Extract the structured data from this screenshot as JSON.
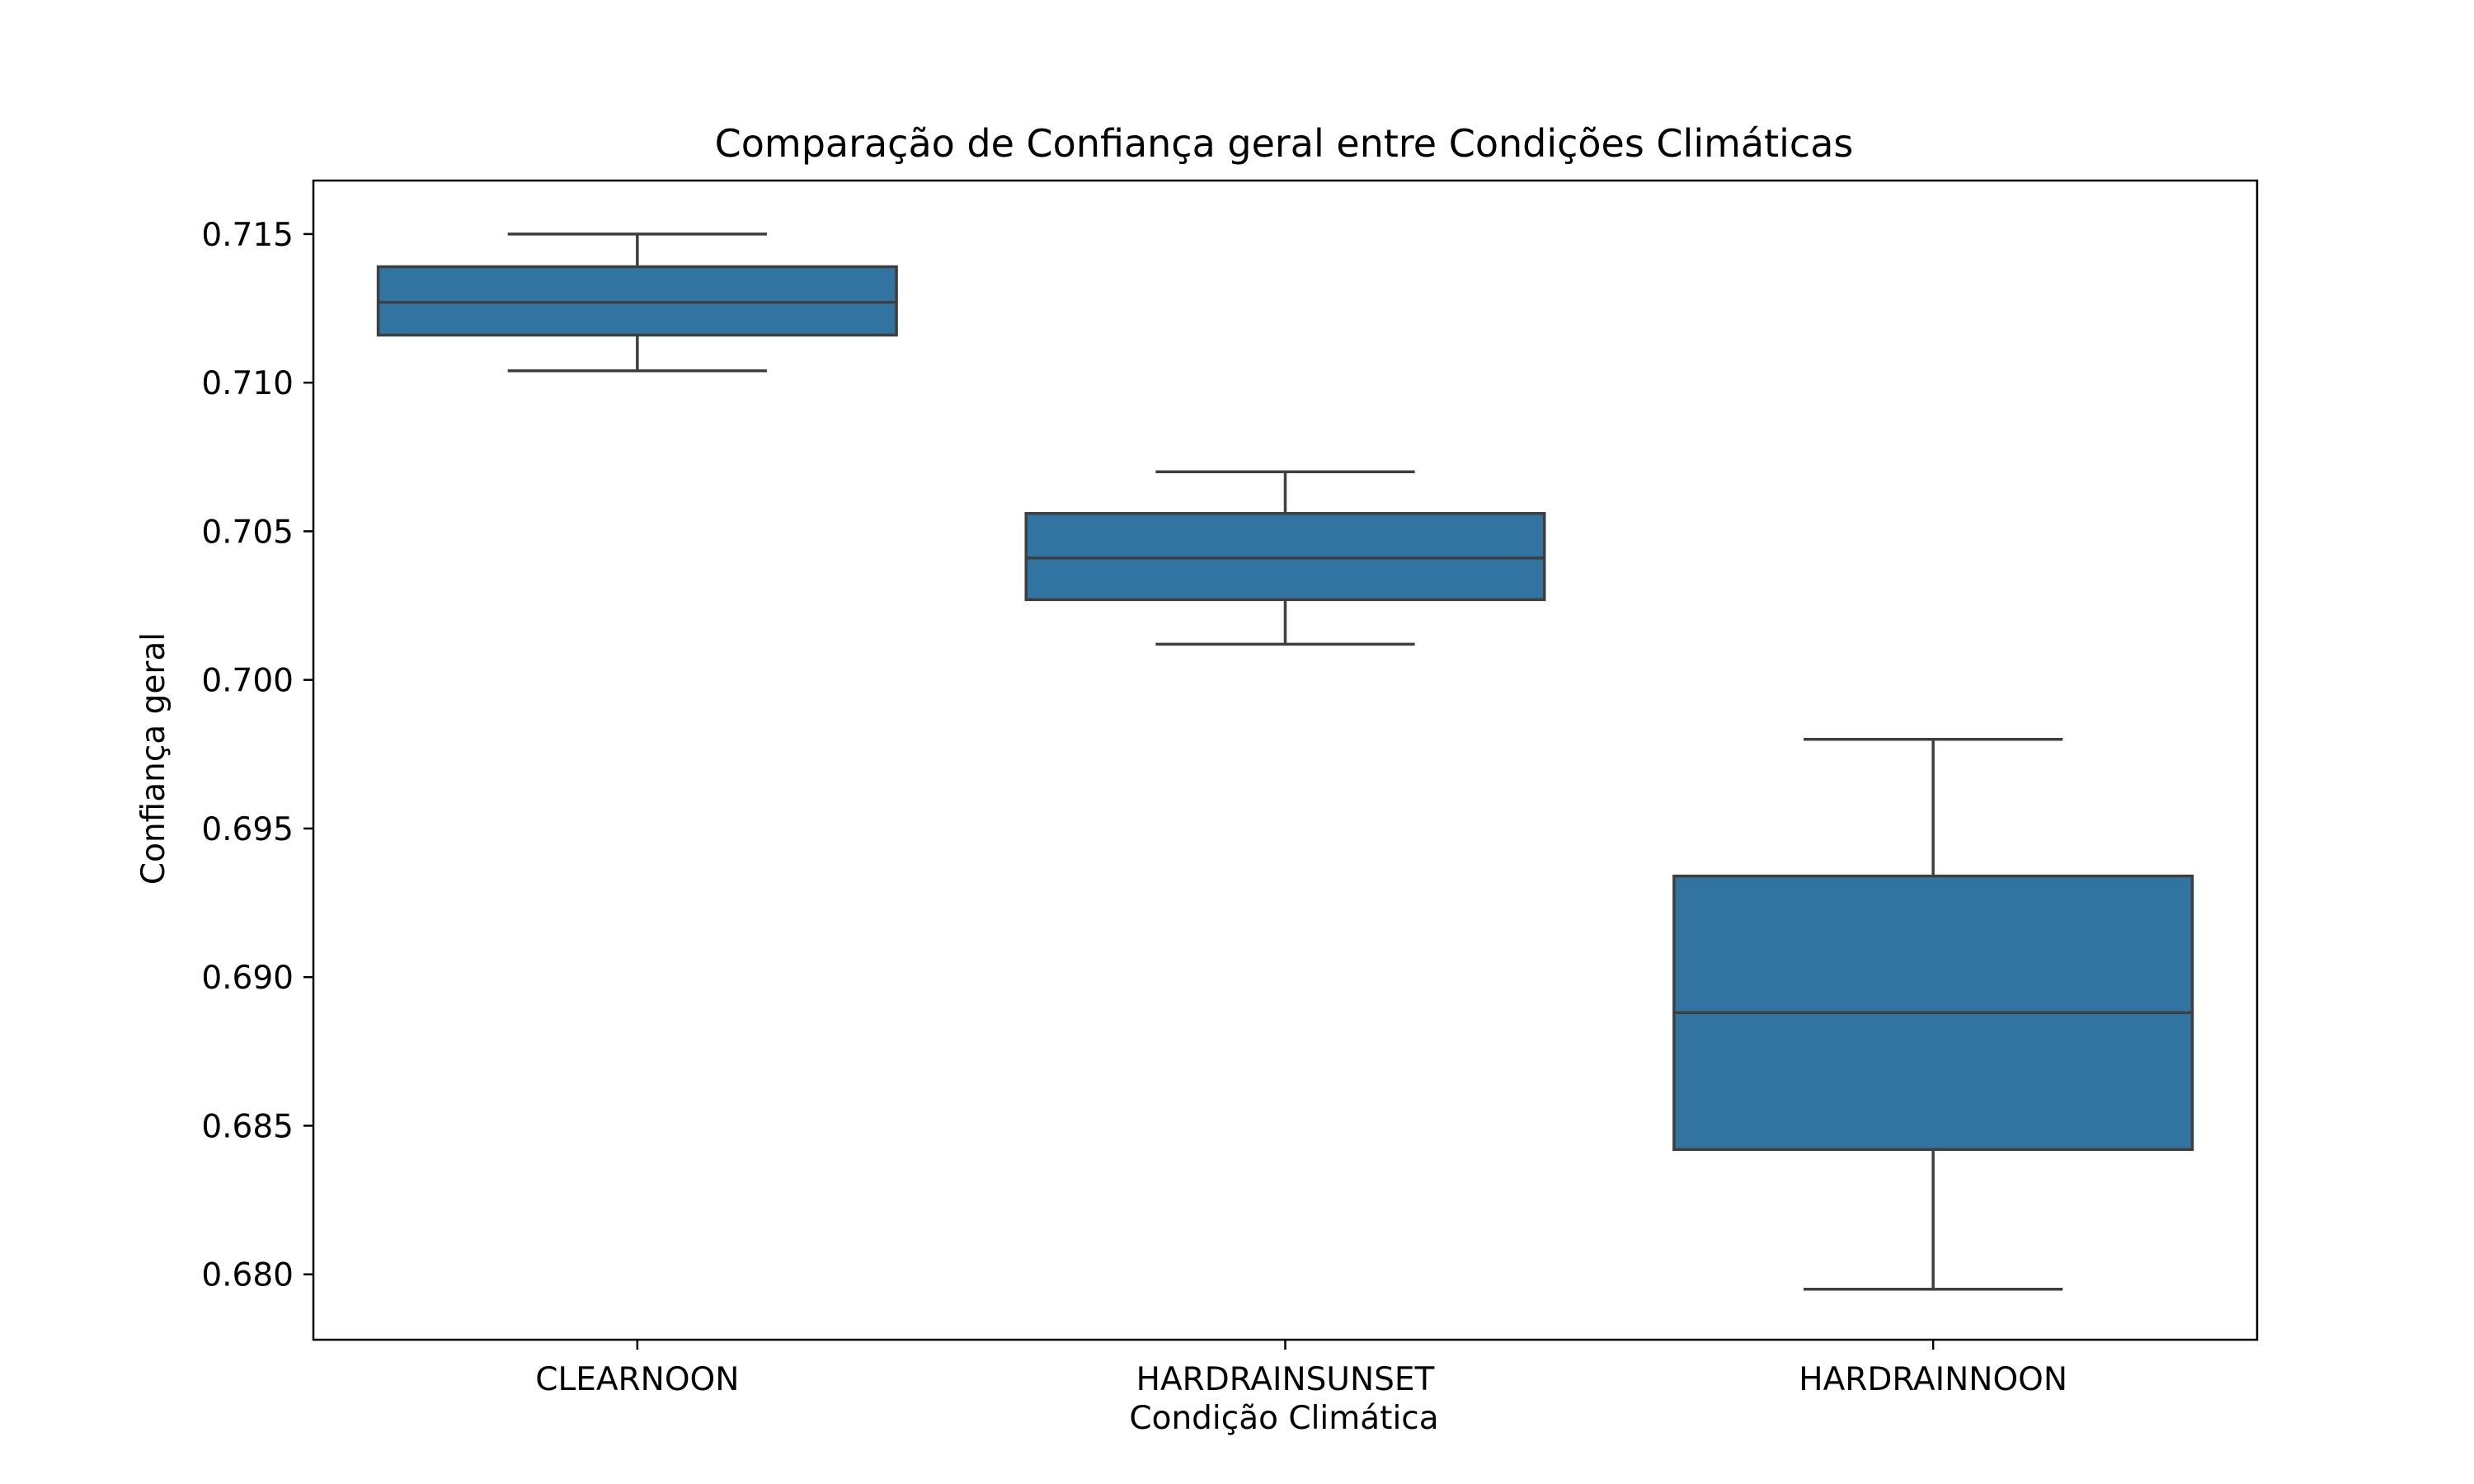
{
  "chart_data": {
    "type": "box",
    "title": "Comparação de Confiança geral entre Condições Climáticas",
    "xlabel": "Condição Climática",
    "ylabel": "Confiança geral",
    "ylim": [
      0.6778,
      0.7168
    ],
    "yticks": [
      0.68,
      0.685,
      0.69,
      0.695,
      0.7,
      0.705,
      0.71,
      0.715
    ],
    "ytick_labels": [
      "0.680",
      "0.685",
      "0.690",
      "0.695",
      "0.700",
      "0.705",
      "0.710",
      "0.715"
    ],
    "categories": [
      "CLEARNOON",
      "HARDRAINSUNSET",
      "HARDRAINNOON"
    ],
    "grid": false,
    "box_color": "#3274a1",
    "line_color": "#3f3f3f",
    "boxes": [
      {
        "category": "CLEARNOON",
        "whisker_low": 0.7104,
        "q1": 0.7116,
        "median": 0.7127,
        "q3": 0.7139,
        "whisker_high": 0.715
      },
      {
        "category": "HARDRAINSUNSET",
        "whisker_low": 0.7012,
        "q1": 0.7027,
        "median": 0.7041,
        "q3": 0.7056,
        "whisker_high": 0.707
      },
      {
        "category": "HARDRAINNOON",
        "whisker_low": 0.6795,
        "q1": 0.6842,
        "median": 0.6888,
        "q3": 0.6934,
        "whisker_high": 0.698
      }
    ]
  }
}
